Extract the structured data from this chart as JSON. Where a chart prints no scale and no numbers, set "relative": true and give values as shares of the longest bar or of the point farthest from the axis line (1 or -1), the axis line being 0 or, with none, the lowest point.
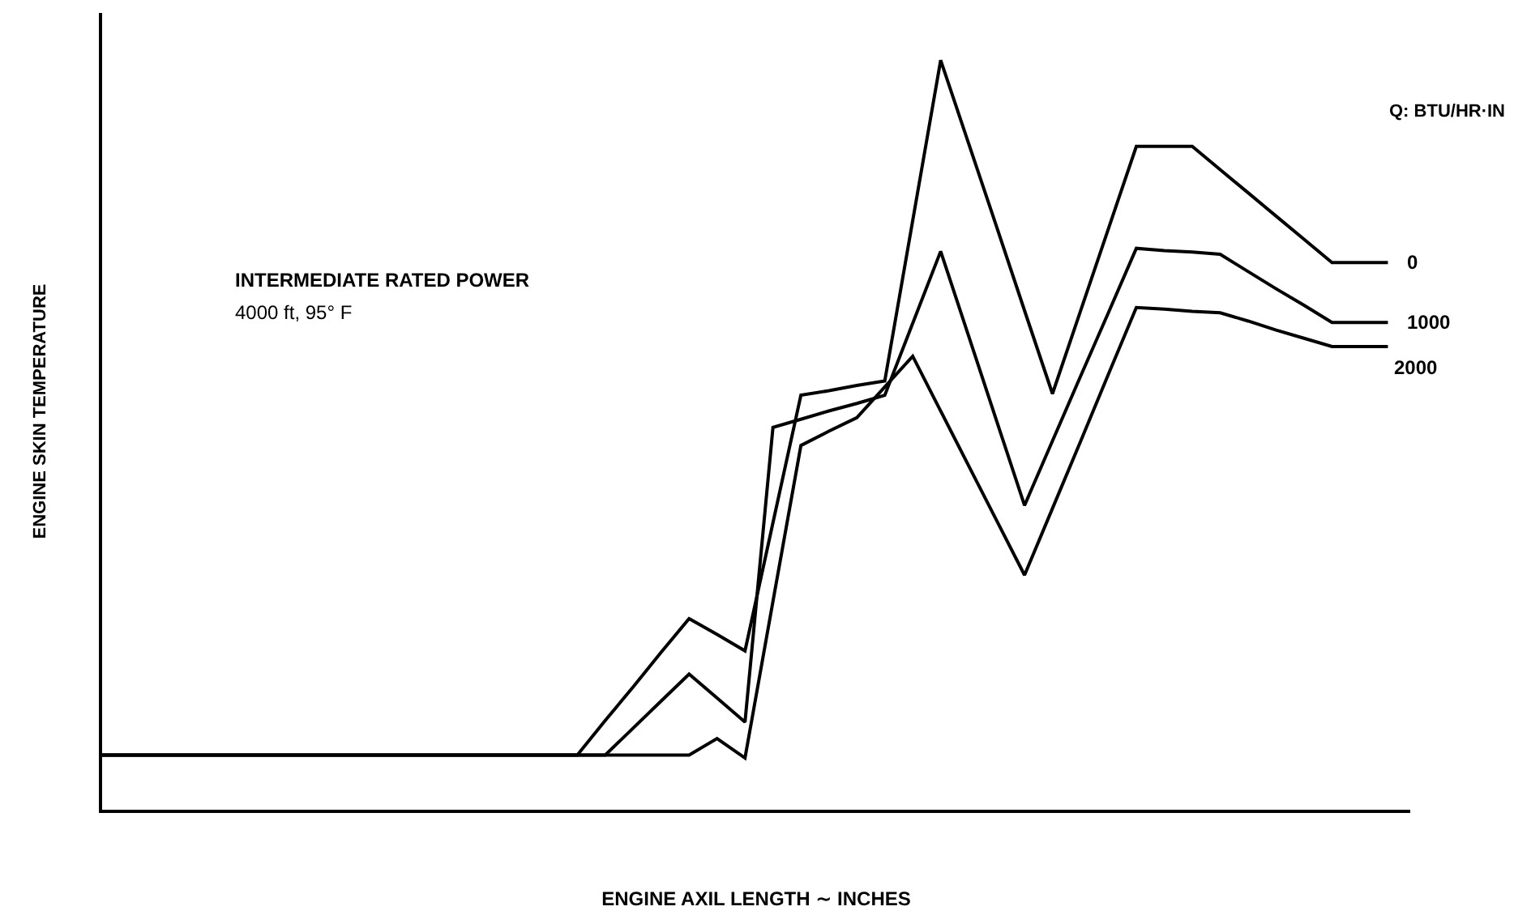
{
  "chart_data": {
    "type": "line",
    "relative": true,
    "xlabel": "ENGINE AXIL LENGTH ∼ INCHES",
    "ylabel": "ENGINE SKIN TEMPERATURE",
    "legend_title": "Q: BTU/HR·IN",
    "legend": false,
    "marker": "none",
    "line_style": "solid",
    "annotations": [
      "INTERMEDIATE RATED POWER",
      "4000 ft, 95° F"
    ],
    "categories": [
      null,
      null,
      null,
      null,
      null,
      null,
      null,
      null,
      null,
      null,
      null,
      null,
      null,
      null,
      null,
      null,
      null,
      null,
      null,
      null,
      null,
      null,
      null,
      null,
      null,
      null,
      null,
      null,
      null,
      null,
      null,
      null,
      null,
      null,
      null,
      null,
      null,
      null,
      null,
      null,
      null,
      null,
      null,
      null,
      null,
      null,
      null
    ],
    "series": [
      {
        "name": "0",
        "color": "#000000",
        "values": [
          0.073,
          0.073,
          0.073,
          0.073,
          0.073,
          0.073,
          0.073,
          0.073,
          0.073,
          0.073,
          0.073,
          0.073,
          0.073,
          0.073,
          0.073,
          0.073,
          0.073,
          0.073,
          0.119,
          0.164,
          0.21,
          0.255,
          0.234,
          0.212,
          0.383,
          0.553,
          0.559,
          0.566,
          0.572,
          0.786,
          1.0,
          0.889,
          0.778,
          0.666,
          0.555,
          0.665,
          0.775,
          0.885,
          0.885,
          0.885,
          0.854,
          0.823,
          0.792,
          0.761,
          0.73,
          0.73,
          0.73
        ]
      },
      {
        "name": "1000",
        "color": "#000000",
        "values": [
          0.073,
          0.073,
          0.073,
          0.073,
          0.073,
          0.073,
          0.073,
          0.073,
          0.073,
          0.073,
          0.073,
          0.073,
          0.073,
          0.073,
          0.073,
          0.073,
          0.073,
          0.073,
          0.073,
          0.109,
          0.145,
          0.181,
          0.149,
          0.117,
          0.51,
          0.521,
          0.532,
          0.542,
          0.553,
          0.649,
          0.745,
          0.632,
          0.519,
          0.406,
          0.492,
          0.578,
          0.663,
          0.749,
          0.746,
          0.744,
          0.741,
          0.718,
          0.695,
          0.673,
          0.65,
          0.65,
          0.65
        ]
      },
      {
        "name": "2000",
        "color": "#000000",
        "values": [
          0.073,
          0.073,
          0.073,
          0.073,
          0.073,
          0.073,
          0.073,
          0.073,
          0.073,
          0.073,
          0.073,
          0.073,
          0.073,
          0.073,
          0.073,
          0.073,
          0.073,
          0.073,
          0.073,
          0.073,
          0.073,
          0.073,
          0.095,
          0.069,
          0.278,
          0.486,
          0.505,
          0.523,
          0.564,
          0.605,
          0.532,
          0.459,
          0.386,
          0.313,
          0.402,
          0.491,
          0.581,
          0.67,
          0.668,
          0.665,
          0.663,
          0.652,
          0.64,
          0.629,
          0.618,
          0.618,
          0.618
        ]
      }
    ]
  }
}
